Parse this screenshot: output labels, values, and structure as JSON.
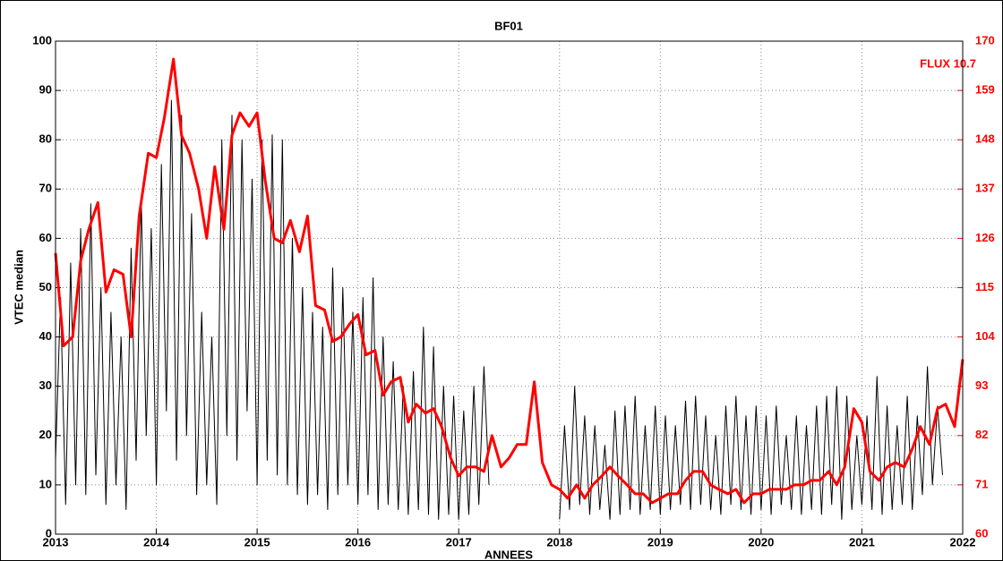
{
  "chart_data": {
    "type": "line",
    "title": "BF01",
    "x_label": "ANNEES",
    "y_label": "VTEC median",
    "annotation": "FLUX 10.7",
    "xlim": [
      2013,
      2022
    ],
    "xticks": [
      2013,
      2014,
      2015,
      2016,
      2017,
      2018,
      2019,
      2020,
      2021,
      2022
    ],
    "ylim": [
      0,
      100
    ],
    "yticks": [
      0,
      10,
      20,
      30,
      40,
      50,
      60,
      70,
      80,
      90,
      100
    ],
    "y2lim": [
      60,
      170
    ],
    "y2ticks": [
      60,
      71,
      82,
      93,
      104,
      115,
      126,
      137,
      148,
      159,
      170
    ],
    "grid": true,
    "y2_color": "#ff0000",
    "series": [
      {
        "name": "VTEC median",
        "color": "#000000",
        "x": [
          2013.0,
          2013.05,
          2013.1,
          2013.15,
          2013.2,
          2013.25,
          2013.3,
          2013.35,
          2013.4,
          2013.45,
          2013.5,
          2013.55,
          2013.6,
          2013.65,
          2013.7,
          2013.75,
          2013.8,
          2013.85,
          2013.9,
          2013.95,
          2014.0,
          2014.05,
          2014.1,
          2014.15,
          2014.2,
          2014.25,
          2014.3,
          2014.35,
          2014.4,
          2014.45,
          2014.5,
          2014.55,
          2014.6,
          2014.65,
          2014.7,
          2014.75,
          2014.8,
          2014.85,
          2014.9,
          2014.95,
          2015.0,
          2015.05,
          2015.1,
          2015.15,
          2015.2,
          2015.25,
          2015.3,
          2015.35,
          2015.4,
          2015.45,
          2015.5,
          2015.55,
          2015.6,
          2015.65,
          2015.7,
          2015.75,
          2015.8,
          2015.85,
          2015.9,
          2015.95,
          2016.0,
          2016.05,
          2016.1,
          2016.15,
          2016.2,
          2016.25,
          2016.3,
          2016.35,
          2016.4,
          2016.45,
          2016.5,
          2016.55,
          2016.6,
          2016.65,
          2016.7,
          2016.75,
          2016.8,
          2016.85,
          2016.9,
          2016.95,
          2017.0,
          2017.05,
          2017.1,
          2017.15,
          2017.2,
          2017.25,
          2017.3,
          2017.65,
          2018.0,
          2018.05,
          2018.1,
          2018.15,
          2018.2,
          2018.25,
          2018.3,
          2018.35,
          2018.4,
          2018.45,
          2018.5,
          2018.55,
          2018.6,
          2018.65,
          2018.7,
          2018.75,
          2018.8,
          2018.85,
          2018.9,
          2018.95,
          2019.0,
          2019.05,
          2019.1,
          2019.15,
          2019.2,
          2019.25,
          2019.3,
          2019.35,
          2019.4,
          2019.45,
          2019.5,
          2019.55,
          2019.6,
          2019.65,
          2019.7,
          2019.75,
          2019.8,
          2019.85,
          2019.9,
          2019.95,
          2020.0,
          2020.05,
          2020.1,
          2020.15,
          2020.2,
          2020.25,
          2020.3,
          2020.35,
          2020.4,
          2020.45,
          2020.5,
          2020.55,
          2020.6,
          2020.65,
          2020.7,
          2020.75,
          2020.8,
          2020.85,
          2020.9,
          2020.95,
          2021.0,
          2021.05,
          2021.1,
          2021.15,
          2021.2,
          2021.25,
          2021.3,
          2021.35,
          2021.4,
          2021.45,
          2021.5,
          2021.55,
          2021.6,
          2021.65,
          2021.7,
          2021.75,
          2021.8
        ],
        "values": [
          15,
          48,
          6,
          55,
          10,
          62,
          8,
          67,
          12,
          50,
          6,
          45,
          10,
          40,
          5,
          58,
          15,
          68,
          20,
          62,
          10,
          75,
          25,
          88,
          15,
          85,
          20,
          65,
          8,
          45,
          10,
          40,
          6,
          80,
          20,
          85,
          15,
          80,
          25,
          72,
          10,
          80,
          15,
          81,
          12,
          80,
          10,
          60,
          8,
          50,
          6,
          45,
          8,
          42,
          5,
          54,
          8,
          50,
          10,
          45,
          6,
          48,
          8,
          52,
          5,
          40,
          6,
          35,
          5,
          30,
          4,
          33,
          5,
          42,
          4,
          38,
          3,
          30,
          4,
          28,
          3,
          25,
          4,
          30,
          6,
          34,
          10,
          null,
          3,
          22,
          5,
          30,
          6,
          24,
          4,
          22,
          5,
          18,
          3,
          25,
          4,
          26,
          5,
          28,
          4,
          22,
          5,
          26,
          4,
          24,
          5,
          22,
          6,
          27,
          5,
          28,
          6,
          24,
          5,
          20,
          4,
          26,
          6,
          28,
          5,
          24,
          4,
          26,
          5,
          24,
          4,
          26,
          6,
          20,
          5,
          24,
          4,
          22,
          5,
          26,
          4,
          28,
          6,
          30,
          3,
          28,
          5,
          20,
          6,
          24,
          5,
          32,
          4,
          26,
          5,
          22,
          6,
          28,
          5,
          24,
          8,
          34,
          10,
          26,
          12
        ]
      },
      {
        "name": "FLUX 10.7",
        "color": "#ff0000",
        "axis": "y2",
        "x": [
          2013.0,
          2013.08,
          2013.17,
          2013.25,
          2013.33,
          2013.42,
          2013.5,
          2013.58,
          2013.67,
          2013.75,
          2013.83,
          2013.92,
          2014.0,
          2014.08,
          2014.17,
          2014.25,
          2014.33,
          2014.42,
          2014.5,
          2014.58,
          2014.67,
          2014.75,
          2014.83,
          2014.92,
          2015.0,
          2015.08,
          2015.17,
          2015.25,
          2015.33,
          2015.42,
          2015.5,
          2015.58,
          2015.67,
          2015.75,
          2015.83,
          2015.92,
          2016.0,
          2016.08,
          2016.17,
          2016.25,
          2016.33,
          2016.42,
          2016.5,
          2016.58,
          2016.67,
          2016.75,
          2016.83,
          2016.92,
          2017.0,
          2017.08,
          2017.17,
          2017.25,
          2017.33,
          2017.42,
          2017.5,
          2017.58,
          2017.67,
          2017.75,
          2017.83,
          2017.92,
          2018.0,
          2018.08,
          2018.17,
          2018.25,
          2018.33,
          2018.42,
          2018.5,
          2018.58,
          2018.67,
          2018.75,
          2018.83,
          2018.92,
          2019.0,
          2019.08,
          2019.17,
          2019.25,
          2019.33,
          2019.42,
          2019.5,
          2019.58,
          2019.67,
          2019.75,
          2019.83,
          2019.92,
          2020.0,
          2020.08,
          2020.17,
          2020.25,
          2020.33,
          2020.42,
          2020.5,
          2020.58,
          2020.67,
          2020.75,
          2020.83,
          2020.92,
          2021.0,
          2021.08,
          2021.17,
          2021.25,
          2021.33,
          2021.42,
          2021.5,
          2021.58,
          2021.67,
          2021.75,
          2021.83,
          2021.92,
          2022.0
        ],
        "values": [
          122.7,
          102,
          104,
          121,
          128,
          134,
          114,
          119,
          118,
          104,
          131,
          145,
          144,
          153,
          166,
          149,
          145,
          137,
          126,
          142,
          128,
          149,
          154,
          151,
          154,
          139,
          126,
          125,
          130,
          123,
          131,
          111,
          110,
          103,
          104,
          107,
          109,
          100,
          101,
          91,
          94,
          95,
          85,
          89,
          87,
          88,
          84,
          77,
          73,
          75,
          75,
          74,
          82,
          75,
          77,
          80,
          80,
          94,
          76,
          71,
          70,
          68,
          71,
          68,
          71,
          73,
          75,
          73,
          71,
          69,
          69,
          67,
          68,
          69,
          69,
          72,
          74,
          74,
          71,
          70,
          69,
          70,
          67,
          69,
          69,
          70,
          70,
          70,
          71,
          71,
          72,
          72,
          74,
          71,
          75,
          88,
          85,
          74,
          72,
          75,
          76,
          75,
          79,
          84,
          80,
          88,
          89,
          84,
          99
        ]
      }
    ]
  }
}
